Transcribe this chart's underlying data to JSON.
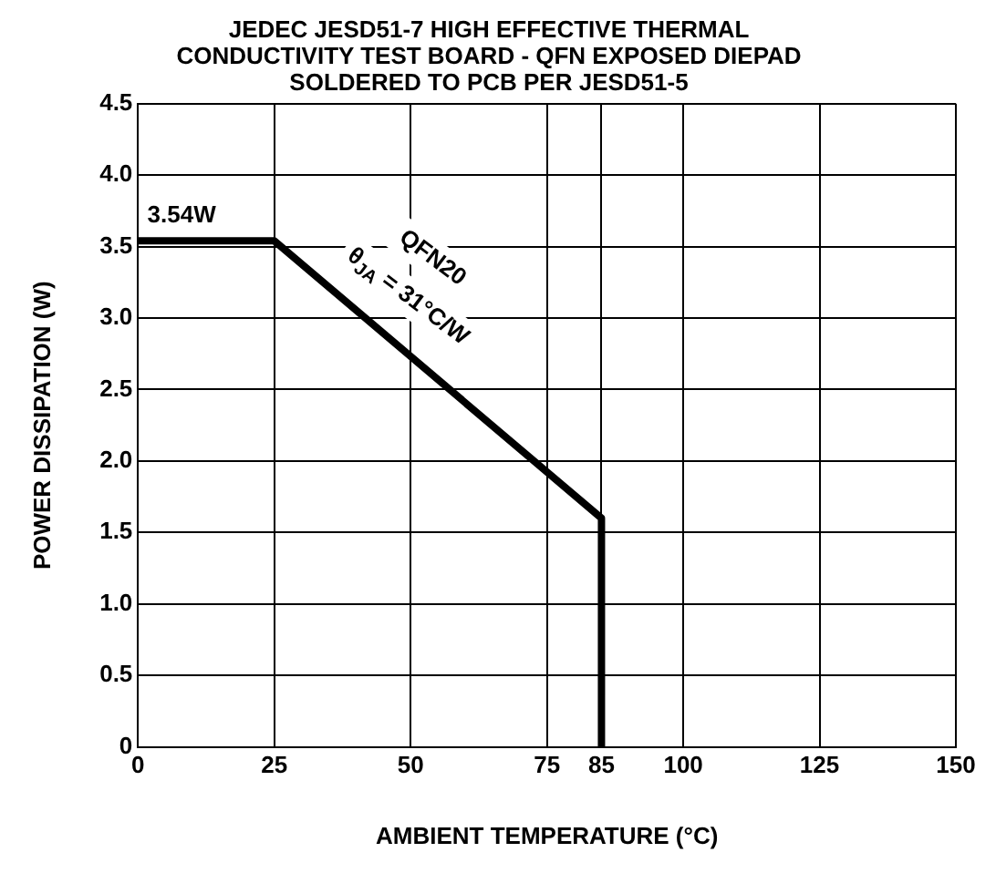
{
  "chart_data": {
    "type": "line",
    "title": "JEDEC JESD51-7 HIGH EFFECTIVE THERMAL CONDUCTIVITY TEST BOARD - QFN EXPOSED DIEPAD SOLDERED TO PCB PER JESD51-5",
    "xlabel": "AMBIENT TEMPERATURE (°C)",
    "ylabel": "POWER DISSIPATION (W)",
    "series": [
      {
        "color": "#000000",
        "x": [
          0,
          25,
          85,
          85
        ],
        "values": [
          3.54,
          3.54,
          1.6,
          0
        ]
      }
    ],
    "xlim": [
      0,
      150
    ],
    "xticks": [
      0,
      25,
      50,
      75,
      85,
      100,
      125,
      150
    ],
    "ylim": [
      0,
      4.5
    ],
    "yticks": [
      0,
      0.5,
      {
        "value": 1,
        "label": "1.0"
      },
      1.5,
      {
        "value": 2,
        "label": "2.0"
      },
      2.5,
      {
        "value": 3,
        "label": "3.0"
      },
      3.5,
      {
        "value": 4,
        "label": "4.0"
      },
      4.5
    ],
    "grid": true,
    "legend": false,
    "marker": "none",
    "line_style": "solid",
    "annotations": [
      {
        "text": "3.54W",
        "x": 8,
        "y": 3.54
      },
      "QFN20",
      "θ$_{JA}$ = 31°C/W"
    ]
  }
}
